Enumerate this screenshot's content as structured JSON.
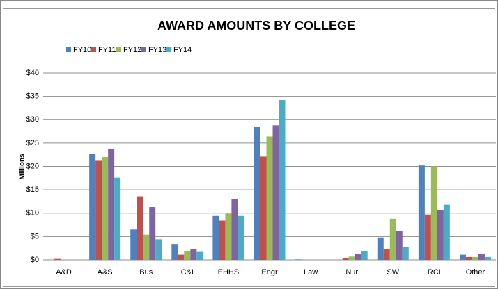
{
  "chart_data": {
    "type": "bar",
    "title": "AWARD AMOUNTS BY COLLEGE",
    "ylabel": "Millions",
    "categories": [
      "A&D",
      "A&S",
      "Bus",
      "C&I",
      "EHHS",
      "Engr",
      "Law",
      "Nur",
      "SW",
      "RCI",
      "Other"
    ],
    "series": [
      {
        "name": "FY10",
        "color": "#4f81bd",
        "values": [
          0,
          22.6,
          6.5,
          3.4,
          9.4,
          28.4,
          0.1,
          0,
          4.8,
          20.2,
          1.1
        ]
      },
      {
        "name": "FY11",
        "color": "#c0504d",
        "values": [
          0.2,
          21.2,
          13.6,
          1.1,
          8.4,
          22.1,
          0,
          0.3,
          2.3,
          9.7,
          0.6
        ]
      },
      {
        "name": "FY12",
        "color": "#9bbb59",
        "values": [
          0,
          22,
          5.4,
          1.8,
          9.9,
          26.4,
          0,
          0.7,
          8.8,
          20,
          0.6
        ]
      },
      {
        "name": "FY13",
        "color": "#8064a2",
        "values": [
          0,
          23.8,
          11.3,
          2.3,
          13,
          28.8,
          0,
          1.2,
          6.1,
          10.6,
          1.2
        ]
      },
      {
        "name": "FY14",
        "color": "#4bacc6",
        "values": [
          0,
          17.6,
          4.4,
          1.7,
          9.4,
          34.2,
          0,
          1.9,
          2.8,
          11.8,
          0.6
        ]
      }
    ],
    "ylim": [
      0,
      40
    ],
    "yticks": [
      {
        "value": 0,
        "label": "$0"
      },
      {
        "value": 5,
        "label": "$5"
      },
      {
        "value": 10,
        "label": "$10"
      },
      {
        "value": 15,
        "label": "$15"
      },
      {
        "value": 20,
        "label": "$20"
      },
      {
        "value": 25,
        "label": "$25"
      },
      {
        "value": 30,
        "label": "$30"
      },
      {
        "value": 35,
        "label": "$35"
      },
      {
        "value": 40,
        "label": "$40"
      }
    ],
    "grid": true,
    "legend": "top-left"
  }
}
